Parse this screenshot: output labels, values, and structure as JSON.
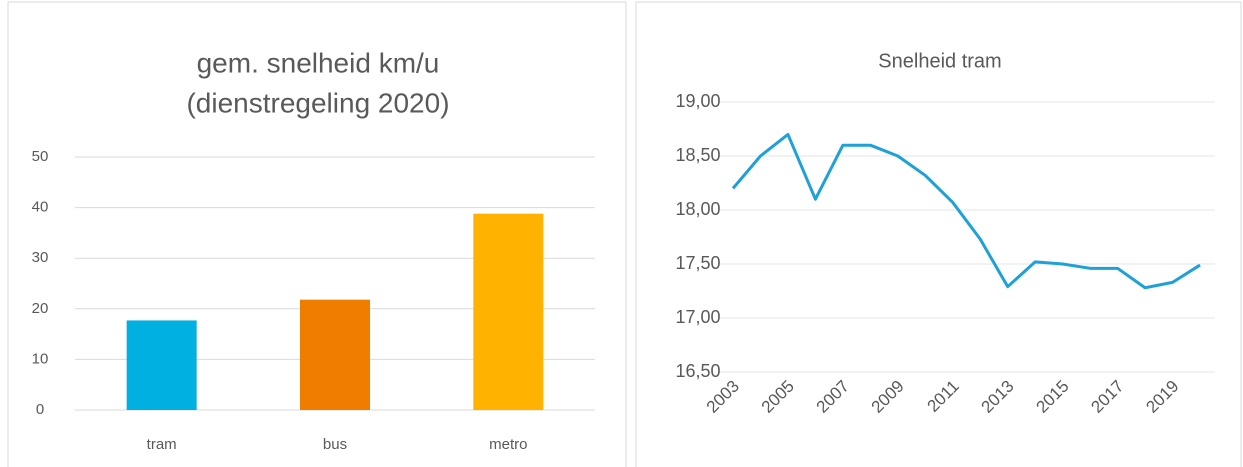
{
  "chart_data": [
    {
      "type": "bar",
      "title": [
        "gem. snelheid km/u",
        "(dienstregeling 2020)"
      ],
      "categories": [
        "tram",
        "bus",
        "metro"
      ],
      "values": [
        17.7,
        21.8,
        38.8
      ],
      "colors": [
        "#00b0e0",
        "#ee7d00",
        "#ffb300"
      ],
      "ylim": [
        0,
        50
      ],
      "yticks": [
        0,
        10,
        20,
        30,
        40,
        50
      ],
      "grid": true
    },
    {
      "type": "line",
      "title": "Snelheid tram",
      "categories": [
        "2003",
        null,
        "2005",
        null,
        "2007",
        null,
        "2009",
        null,
        "2011",
        null,
        "2013",
        null,
        "2015",
        null,
        "2017",
        null,
        "2019",
        null
      ],
      "values": [
        18.2,
        18.5,
        18.7,
        18.1,
        18.6,
        18.6,
        18.5,
        18.32,
        18.07,
        17.73,
        17.29,
        17.52,
        17.5,
        17.46,
        17.46,
        17.28,
        17.33,
        17.49
      ],
      "color": "#1ea0d8",
      "ylim": [
        16.5,
        19.0
      ],
      "yticks": [
        {
          "value": 16.5,
          "label": "16,50"
        },
        {
          "value": 17.0,
          "label": "17,00"
        },
        {
          "value": 17.5,
          "label": "17,50"
        },
        {
          "value": 18.0,
          "label": "18,00"
        },
        {
          "value": 18.5,
          "label": "18,50"
        },
        {
          "value": 19.0,
          "label": "19,00"
        }
      ],
      "grid": true
    }
  ]
}
